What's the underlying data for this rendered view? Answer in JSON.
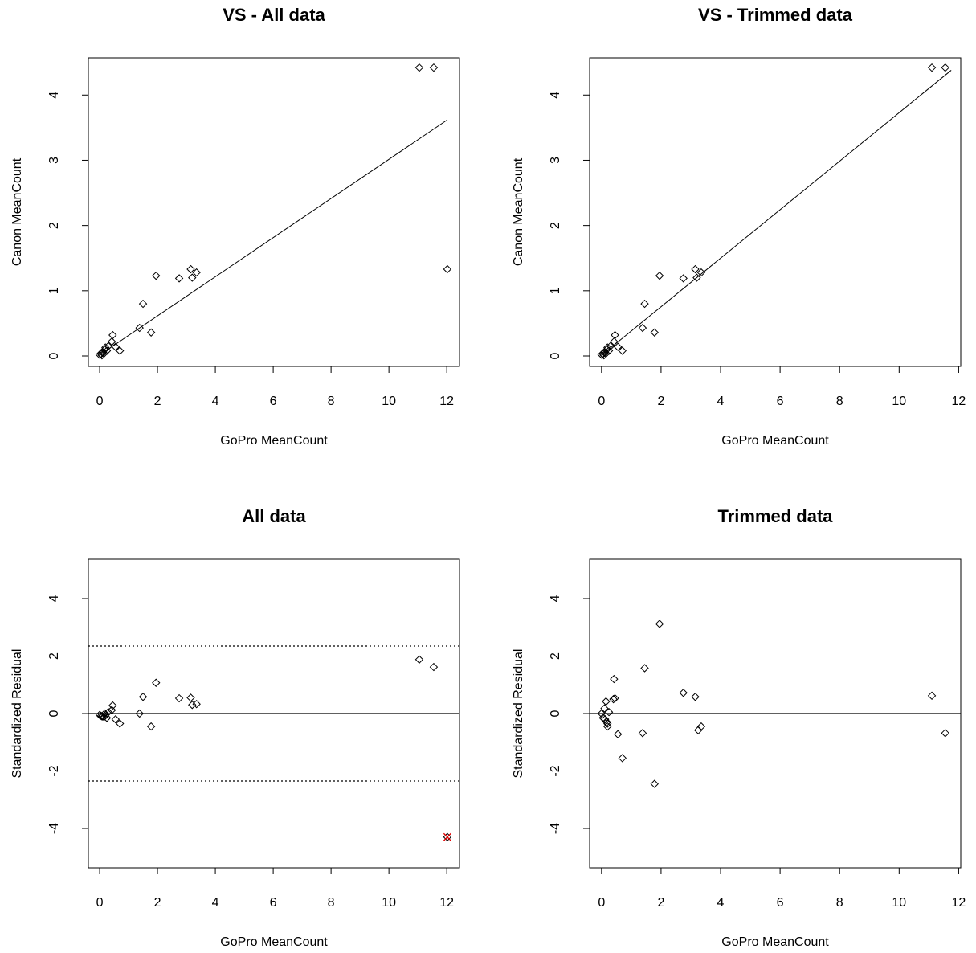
{
  "chart_data": [
    {
      "type": "scatter",
      "title": "VS - All data",
      "xlabel": "GoPro MeanCount",
      "ylabel": "Canon MeanCount",
      "marker": "diamond",
      "color": "#000000",
      "x": [
        11.05,
        11.55,
        12.02,
        3.15,
        3.35,
        3.2,
        2.75,
        1.95,
        1.5,
        1.38,
        1.78,
        0.45,
        0.42,
        0.7,
        0.55,
        0.3,
        0.2,
        0.25,
        0.1,
        0.05,
        0.15,
        0,
        0.08,
        0.18
      ],
      "values": [
        4.42,
        4.42,
        1.33,
        1.33,
        1.28,
        1.2,
        1.19,
        1.23,
        0.8,
        0.43,
        0.36,
        0.32,
        0.22,
        0.08,
        0.14,
        0.15,
        0.13,
        0.08,
        0.05,
        0.03,
        0.04,
        0.02,
        0.01,
        0.1
      ],
      "fit": {
        "x": [
          0.15,
          12.02
        ],
        "y": [
          0.06,
          3.62
        ]
      },
      "xlim": [
        -0.39,
        12.44
      ],
      "ylim": [
        -0.16,
        4.57
      ],
      "xticks": [
        0,
        2,
        4,
        6,
        8,
        10,
        12
      ],
      "yticks": [
        0,
        1,
        2,
        3,
        4
      ]
    },
    {
      "type": "scatter",
      "title": "VS - Trimmed data",
      "xlabel": "GoPro MeanCount",
      "ylabel": "Canon MeanCount",
      "marker": "diamond",
      "color": "#000000",
      "x": [
        11.1,
        11.55,
        3.15,
        3.35,
        3.2,
        2.75,
        1.95,
        1.45,
        1.38,
        1.78,
        0.45,
        0.42,
        0.7,
        0.55,
        0.3,
        0.2,
        0.25,
        0.1,
        0.05,
        0.15,
        0,
        0.08,
        0.18
      ],
      "values": [
        4.42,
        4.42,
        1.33,
        1.28,
        1.2,
        1.19,
        1.23,
        0.8,
        0.43,
        0.36,
        0.32,
        0.22,
        0.08,
        0.14,
        0.15,
        0.13,
        0.08,
        0.05,
        0.03,
        0.04,
        0.02,
        0.01,
        0.1
      ],
      "fit": {
        "x": [
          0.05,
          11.75
        ],
        "y": [
          0.03,
          4.38
        ]
      },
      "xlim": [
        -0.4,
        12.07
      ],
      "ylim": [
        -0.16,
        4.57
      ],
      "xticks": [
        0,
        2,
        4,
        6,
        8,
        10,
        12
      ],
      "yticks": [
        0,
        1,
        2,
        3,
        4
      ]
    },
    {
      "type": "scatter",
      "title": "All data",
      "xlabel": "GoPro MeanCount",
      "ylabel": "Standardized Residual",
      "marker": "diamond",
      "color": "#000000",
      "x": [
        11.05,
        11.55,
        12.02,
        3.15,
        3.35,
        3.2,
        2.75,
        1.95,
        1.5,
        1.38,
        1.78,
        0.45,
        0.42,
        0.7,
        0.55,
        0.3,
        0.2,
        0.25,
        0.1,
        0.05,
        0.15,
        0,
        0.08,
        0.18
      ],
      "values": [
        1.88,
        1.62,
        -4.3,
        0.55,
        0.33,
        0.3,
        0.53,
        1.07,
        0.58,
        0.0,
        -0.45,
        0.28,
        0.12,
        -0.35,
        -0.2,
        0.05,
        -0.05,
        -0.15,
        -0.1,
        -0.08,
        -0.12,
        -0.05,
        -0.1,
        0.0
      ],
      "hlines": [
        {
          "y": 0,
          "style": "solid"
        },
        {
          "y": 2.35,
          "style": "dotted"
        },
        {
          "y": -2.35,
          "style": "dotted"
        }
      ],
      "highlight": {
        "x": 12.02,
        "y": -4.3,
        "color": "#e00000"
      },
      "xlim": [
        -0.39,
        12.44
      ],
      "ylim": [
        -5.37,
        5.37
      ],
      "xticks": [
        0,
        2,
        4,
        6,
        8,
        10,
        12
      ],
      "yticks": [
        -4,
        -2,
        0,
        2,
        4
      ]
    },
    {
      "type": "scatter",
      "title": "Trimmed data",
      "xlabel": "GoPro MeanCount",
      "ylabel": "Standardized Residual",
      "marker": "diamond",
      "color": "#000000",
      "x": [
        11.1,
        11.55,
        3.15,
        3.35,
        3.25,
        2.75,
        1.95,
        1.45,
        1.38,
        1.78,
        0.42,
        0.45,
        0.4,
        0.7,
        0.55,
        0.25,
        0.15,
        0.2,
        0.2,
        0.1,
        0.05,
        0,
        0.12,
        0.18
      ],
      "values": [
        0.62,
        -0.68,
        0.58,
        -0.45,
        -0.58,
        0.72,
        3.12,
        1.58,
        -0.68,
        -2.45,
        1.2,
        0.53,
        0.5,
        -1.55,
        -0.72,
        0.05,
        0.42,
        -0.35,
        -0.45,
        0.18,
        -0.15,
        0.0,
        -0.2,
        -0.3
      ],
      "hlines": [
        {
          "y": 0,
          "style": "solid"
        }
      ],
      "xlim": [
        -0.4,
        12.07
      ],
      "ylim": [
        -5.37,
        5.37
      ],
      "xticks": [
        0,
        2,
        4,
        6,
        8,
        10,
        12
      ],
      "yticks": [
        -4,
        -2,
        0,
        2,
        4
      ]
    }
  ]
}
